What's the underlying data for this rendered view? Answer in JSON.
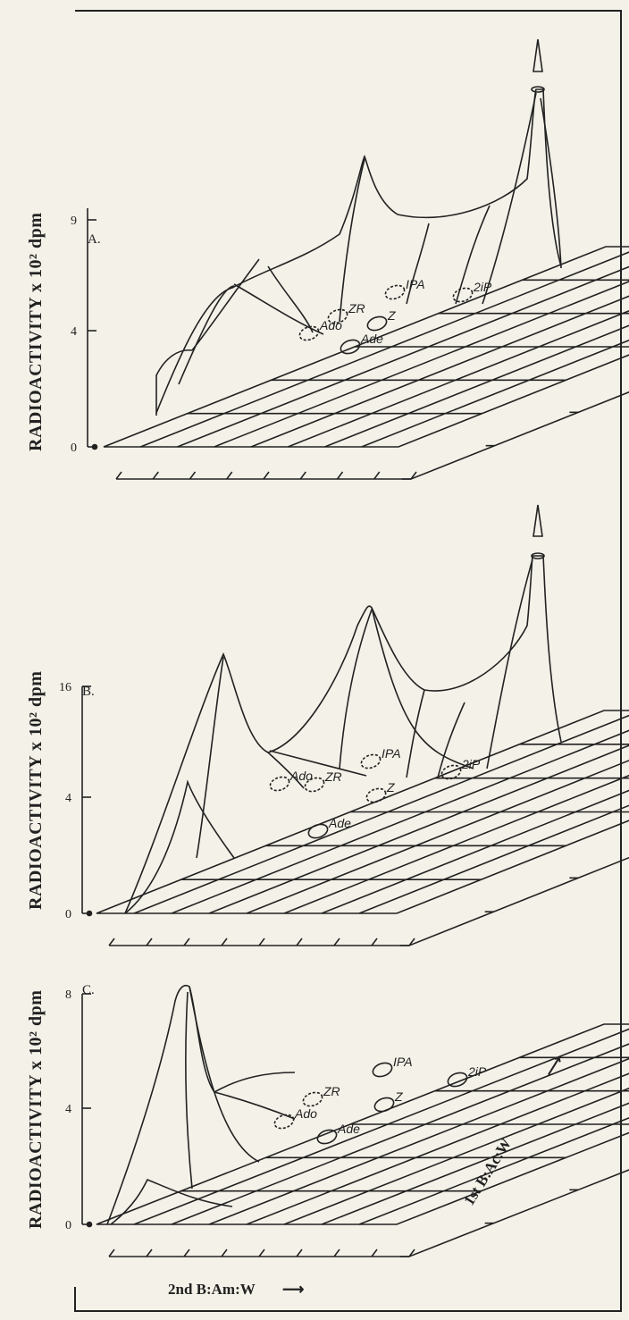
{
  "chart_data": [
    {
      "type": "surface",
      "panel_label": "A.",
      "ylabel": "RADIOACTIVITY x 10² dpm",
      "y_ticks": [
        0,
        4,
        9
      ],
      "spots": [
        {
          "name": "Ado",
          "style": "dashed"
        },
        {
          "name": "ZR",
          "style": "dashed"
        },
        {
          "name": "Ade",
          "style": "solid"
        },
        {
          "name": "Z",
          "style": "solid"
        },
        {
          "name": "IPA",
          "style": "dashed"
        },
        {
          "name": "2iP",
          "style": "dashed"
        }
      ],
      "peaks": [
        {
          "near": "ZR",
          "value": 9
        },
        {
          "near": "2iP",
          "value": 14
        }
      ]
    },
    {
      "type": "surface",
      "panel_label": "B.",
      "ylabel": "RADIOACTIVITY x 10² dpm",
      "y_ticks": [
        0,
        4,
        16
      ],
      "spots": [
        {
          "name": "Ado",
          "style": "dashed"
        },
        {
          "name": "ZR",
          "style": "dashed"
        },
        {
          "name": "Ade",
          "style": "solid"
        },
        {
          "name": "Z",
          "style": "dashed"
        },
        {
          "name": "IPA",
          "style": "dashed"
        },
        {
          "name": "2iP",
          "style": "dashed"
        }
      ],
      "peaks": [
        {
          "near": "Ado",
          "value": 14
        },
        {
          "near": "ZR",
          "value": 16
        },
        {
          "near": "2iP",
          "value": 20
        }
      ]
    },
    {
      "type": "surface",
      "panel_label": "C.",
      "ylabel": "RADIOACTIVITY x 10² dpm",
      "y_ticks": [
        0,
        4,
        8
      ],
      "spots": [
        {
          "name": "Ado",
          "style": "dashed"
        },
        {
          "name": "ZR",
          "style": "dashed"
        },
        {
          "name": "Ade",
          "style": "solid"
        },
        {
          "name": "Z",
          "style": "solid"
        },
        {
          "name": "IPA",
          "style": "solid"
        },
        {
          "name": "2iP",
          "style": "solid"
        }
      ],
      "peaks": [
        {
          "near": "origin",
          "value": 8
        }
      ]
    }
  ],
  "axes": {
    "first_dimension": "1st B:Ac:W",
    "second_dimension": "2nd B:Am:W"
  },
  "colors": {
    "ink": "#222222",
    "paper": "#f4f1e8"
  }
}
